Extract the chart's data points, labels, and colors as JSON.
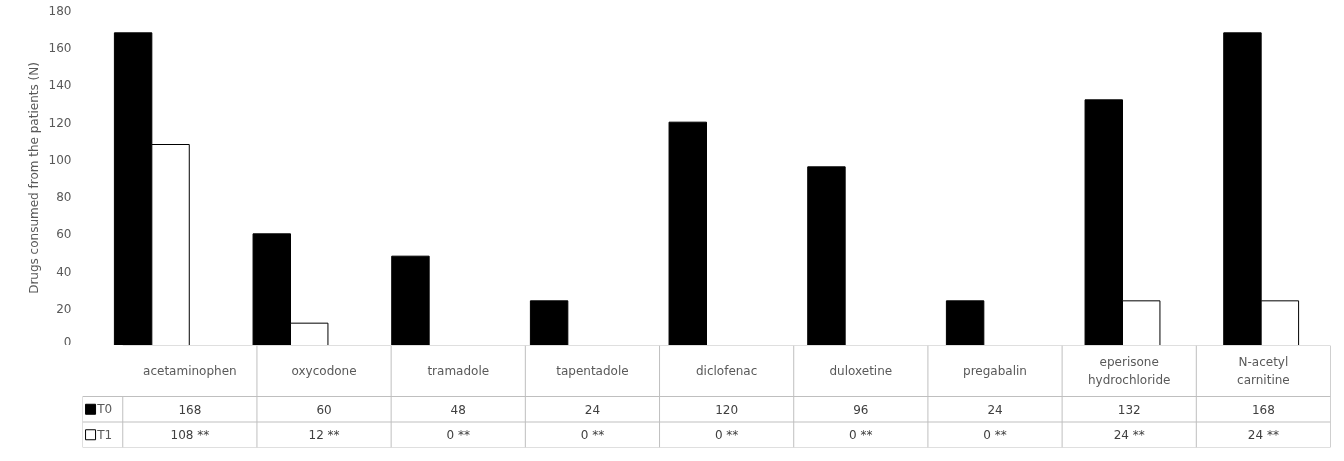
{
  "chart_data": {
    "type": "bar",
    "ylabel": "Drugs consumed from the patients (N)",
    "categories": [
      "acetaminophen",
      "oxycodone",
      "tramadole",
      "tapentadole",
      "diclofenac",
      "duloxetine",
      "pregabalin",
      "eperisone hydrochloride",
      "N-acetyl carnitine"
    ],
    "series": [
      {
        "name": "T0",
        "color": "#000000",
        "values": [
          168,
          60,
          48,
          24,
          120,
          96,
          24,
          132,
          168
        ]
      },
      {
        "name": "T1",
        "color": "#ffffff",
        "values": [
          108,
          12,
          0,
          0,
          0,
          0,
          0,
          24,
          24
        ],
        "value_labels": [
          "108 **",
          "12 **",
          "0 **",
          "0 **",
          "0 **",
          "0 **",
          "0 **",
          "24 **",
          "24 **"
        ]
      }
    ],
    "ylim": [
      0,
      180
    ],
    "yticks": [
      0,
      20,
      40,
      60,
      80,
      100,
      120,
      140,
      160,
      180
    ],
    "grid": false,
    "legend": "bottom",
    "data_labels": true,
    "tick_labels": "y"
  }
}
